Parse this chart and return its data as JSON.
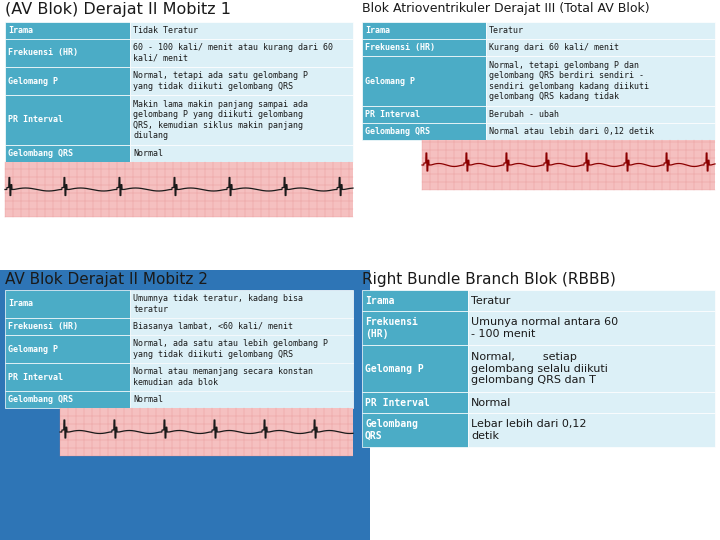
{
  "bg_color": "#ffffff",
  "header_color": "#4BACC6",
  "row_color_dark": "#4BACC6",
  "row_color_light": "#DCF0F7",
  "text_white": "#ffffff",
  "text_dark": "#1a1a1a",
  "bottom_bg": "#2E75B6",
  "title1": "(AV Blok) Derajat II Mobitz 1",
  "title2": "Blok Atrioventrikuler Derajat III (Total AV Blok)",
  "title3": "AV Blok Derajat II Mobitz 2",
  "title4": "Right Bundle Branch Blok (RBBB)",
  "table1": [
    [
      "Irama",
      "Tidak Teratur"
    ],
    [
      "Frekuensi (HR)",
      "60 - 100 kali/ menit atau kurang dari 60\nkali/ menit"
    ],
    [
      "Gelomang P",
      "Normal, tetapi ada satu gelombang P\nyang tidak diikuti gelombang QRS"
    ],
    [
      "PR Interval",
      "Makin lama makin panjang sampai ada\ngelombang P yang diikuti gelombang\nQRS, kemudian siklus makin panjang\ndiulang"
    ],
    [
      "Gelombang QRS",
      "Normal"
    ]
  ],
  "table2": [
    [
      "Irama",
      "Teratur"
    ],
    [
      "Frekuensi (HR)",
      "Kurang dari 60 kali/ menit"
    ],
    [
      "Gelomang P",
      "Normal, tetapi gelombang P dan\ngelombang QRS berdiri sendiri -\nsendiri gelombang kadang diikuti\ngelombang QRS kadang tidak"
    ],
    [
      "PR Interval",
      "Berubah - ubah"
    ],
    [
      "Gelombang QRS",
      "Normal atau lebih dari 0,12 detik"
    ]
  ],
  "table3": [
    [
      "Irama",
      "Umumnya tidak teratur, kadang bisa\nteratur"
    ],
    [
      "Frekuensi (HR)",
      "Biasanya lambat, <60 kali/ menit"
    ],
    [
      "Gelomang P",
      "Normal, ada satu atau lebih gelombang P\nyang tidak diikuti gelombang QRS"
    ],
    [
      "PR Interval",
      "Normal atau memanjang secara konstan\nkemudian ada blok"
    ],
    [
      "Gelombang QRS",
      "Normal"
    ]
  ],
  "table4": [
    [
      "Irama",
      "Teratur"
    ],
    [
      "Frekuensi\n(HR)",
      "Umunya normal antara 60\n- 100 menit"
    ],
    [
      "Gelomang P",
      "Normal,        setiap\ngelombang selalu diikuti\ngelombang QRS dan T"
    ],
    [
      "PR Interval",
      "Normal"
    ],
    [
      "Gelombang\nQRS",
      "Lebar lebih dari 0,12\ndetik"
    ]
  ]
}
